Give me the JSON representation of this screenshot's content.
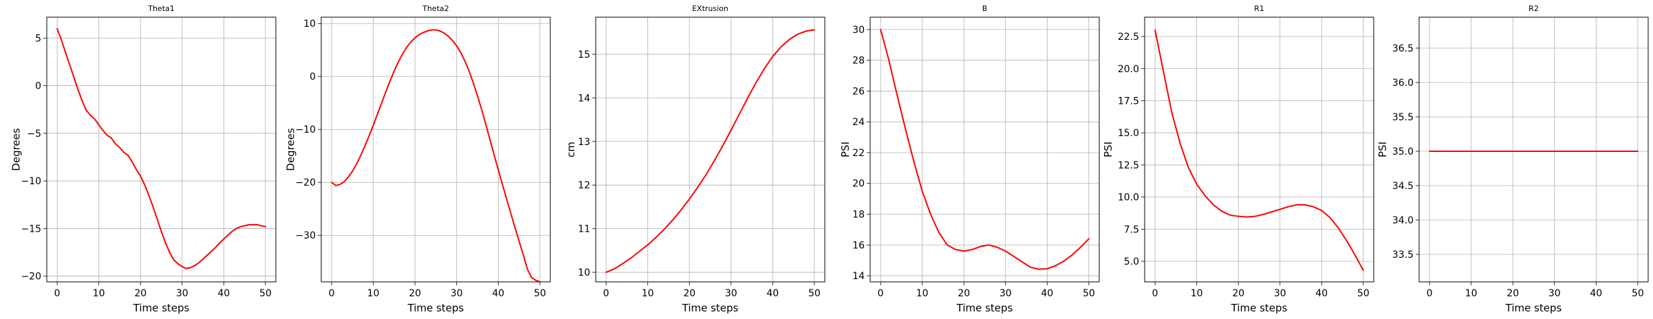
{
  "figure": {
    "accent_color": "#ff0000",
    "grid_color": "#b0b0b0"
  },
  "chart_data": [
    {
      "type": "line",
      "title": "Theta1",
      "xlabel": "Time steps",
      "ylabel": "Degrees",
      "xlim": [
        -2.5,
        52.5
      ],
      "ylim": [
        -20.6,
        7.2
      ],
      "xticks": [
        0,
        10,
        20,
        30,
        40,
        50
      ],
      "yticks": [
        -20,
        -15,
        -10,
        -5,
        0,
        5
      ],
      "grid": true,
      "series": [
        {
          "color": "#ff0000",
          "x": [
            0,
            1,
            2,
            3,
            4,
            5,
            6,
            7,
            8,
            9,
            10,
            11,
            12,
            13,
            14,
            15,
            16,
            17,
            18,
            19,
            20,
            21,
            22,
            23,
            24,
            25,
            26,
            27,
            28,
            29,
            30,
            31,
            32,
            33,
            34,
            35,
            36,
            37,
            38,
            39,
            40,
            41,
            42,
            43,
            44,
            45,
            46,
            47,
            48,
            49,
            50
          ],
          "y": [
            6.0,
            4.8,
            3.5,
            2.2,
            0.9,
            -0.4,
            -1.6,
            -2.6,
            -3.1,
            -3.5,
            -4.1,
            -4.7,
            -5.2,
            -5.5,
            -6.1,
            -6.5,
            -7.0,
            -7.3,
            -8.0,
            -8.8,
            -9.5,
            -10.4,
            -11.5,
            -12.7,
            -14.0,
            -15.3,
            -16.5,
            -17.5,
            -18.3,
            -18.7,
            -19.0,
            -19.2,
            -19.1,
            -18.9,
            -18.6,
            -18.2,
            -17.8,
            -17.4,
            -17.0,
            -16.5,
            -16.1,
            -15.7,
            -15.3,
            -15.0,
            -14.8,
            -14.7,
            -14.6,
            -14.6,
            -14.6,
            -14.7,
            -14.8
          ]
        }
      ]
    },
    {
      "type": "line",
      "title": "Theta2",
      "xlabel": "Time steps",
      "ylabel": "Degrees",
      "xlim": [
        -2.5,
        52.5
      ],
      "ylim": [
        -38.8,
        11.2
      ],
      "xticks": [
        0,
        10,
        20,
        30,
        40,
        50
      ],
      "yticks": [
        -30,
        -20,
        -10,
        0,
        10
      ],
      "grid": true,
      "series": [
        {
          "color": "#ff0000",
          "x": [
            0,
            1,
            2,
            3,
            4,
            5,
            6,
            7,
            8,
            9,
            10,
            11,
            12,
            13,
            14,
            15,
            16,
            17,
            18,
            19,
            20,
            21,
            22,
            23,
            24,
            25,
            26,
            27,
            28,
            29,
            30,
            31,
            32,
            33,
            34,
            35,
            36,
            37,
            38,
            39,
            40,
            41,
            42,
            43,
            44,
            45,
            46,
            47,
            48,
            49,
            50
          ],
          "y": [
            -20.0,
            -20.6,
            -20.4,
            -19.9,
            -19.0,
            -17.9,
            -16.5,
            -14.9,
            -13.1,
            -11.2,
            -9.2,
            -7.1,
            -5.0,
            -2.9,
            -0.9,
            1.0,
            2.7,
            4.2,
            5.5,
            6.5,
            7.3,
            7.9,
            8.3,
            8.6,
            8.8,
            8.8,
            8.6,
            8.2,
            7.6,
            6.8,
            5.8,
            4.5,
            2.9,
            1.0,
            -1.2,
            -3.6,
            -6.2,
            -9.0,
            -11.9,
            -14.8,
            -17.6,
            -20.4,
            -23.1,
            -25.8,
            -28.5,
            -31.1,
            -33.7,
            -36.4,
            -38.0,
            -38.5,
            -38.8
          ]
        }
      ]
    },
    {
      "type": "line",
      "title": "EXtrusion",
      "xlabel": "Time steps",
      "ylabel": "cm",
      "xlim": [
        -2.5,
        52.5
      ],
      "ylim": [
        9.78,
        15.85
      ],
      "xticks": [
        0,
        10,
        20,
        30,
        40,
        50
      ],
      "yticks": [
        10,
        11,
        12,
        13,
        14,
        15
      ],
      "grid": true,
      "series": [
        {
          "color": "#ff0000",
          "x": [
            0,
            2,
            4,
            6,
            8,
            10,
            12,
            14,
            16,
            18,
            20,
            22,
            24,
            26,
            28,
            30,
            32,
            34,
            36,
            38,
            40,
            42,
            44,
            46,
            48,
            50
          ],
          "y": [
            10.0,
            10.08,
            10.2,
            10.33,
            10.48,
            10.63,
            10.8,
            10.99,
            11.2,
            11.43,
            11.68,
            11.95,
            12.24,
            12.56,
            12.9,
            13.26,
            13.63,
            14.0,
            14.35,
            14.67,
            14.95,
            15.17,
            15.34,
            15.46,
            15.53,
            15.56
          ]
        }
      ]
    },
    {
      "type": "line",
      "title": "B",
      "xlabel": "Time steps",
      "ylabel": "PSI",
      "xlim": [
        -2.5,
        52.5
      ],
      "ylim": [
        13.6,
        30.8
      ],
      "xticks": [
        0,
        10,
        20,
        30,
        40,
        50
      ],
      "yticks": [
        14,
        16,
        18,
        20,
        22,
        24,
        26,
        28,
        30
      ],
      "grid": true,
      "series": [
        {
          "color": "#ff0000",
          "x": [
            0,
            2,
            4,
            6,
            8,
            10,
            12,
            14,
            16,
            18,
            20,
            22,
            24,
            26,
            28,
            30,
            32,
            34,
            36,
            38,
            40,
            42,
            44,
            46,
            48,
            50
          ],
          "y": [
            30.0,
            28.0,
            25.7,
            23.5,
            21.4,
            19.5,
            18.0,
            16.8,
            16.0,
            15.7,
            15.6,
            15.7,
            15.9,
            16.0,
            15.85,
            15.6,
            15.25,
            14.9,
            14.55,
            14.42,
            14.45,
            14.65,
            14.95,
            15.35,
            15.85,
            16.4
          ]
        }
      ]
    },
    {
      "type": "line",
      "title": "R1",
      "xlabel": "Time steps",
      "ylabel": "PSI",
      "xlim": [
        -2.5,
        52.5
      ],
      "ylim": [
        3.4,
        24.0
      ],
      "xticks": [
        0,
        10,
        20,
        30,
        40,
        50
      ],
      "yticks": [
        5.0,
        7.5,
        10.0,
        12.5,
        15.0,
        17.5,
        20.0,
        22.5
      ],
      "yticklabels": [
        "5.0",
        "7.5",
        "10.0",
        "12.5",
        "15.0",
        "17.5",
        "20.0",
        "22.5"
      ],
      "grid": true,
      "series": [
        {
          "color": "#ff0000",
          "x": [
            0,
            2,
            4,
            6,
            8,
            10,
            12,
            14,
            16,
            18,
            20,
            22,
            24,
            26,
            28,
            30,
            32,
            34,
            36,
            38,
            40,
            42,
            44,
            46,
            48,
            50
          ],
          "y": [
            23.0,
            19.8,
            16.6,
            14.2,
            12.3,
            11.0,
            10.1,
            9.4,
            8.9,
            8.6,
            8.5,
            8.45,
            8.5,
            8.65,
            8.85,
            9.05,
            9.25,
            9.4,
            9.4,
            9.25,
            8.95,
            8.4,
            7.6,
            6.6,
            5.5,
            4.3
          ]
        }
      ]
    },
    {
      "type": "line",
      "title": "R2",
      "xlabel": "Time steps",
      "ylabel": "PSI",
      "xlim": [
        -2.5,
        52.5
      ],
      "ylim": [
        33.1,
        36.95
      ],
      "xticks": [
        0,
        10,
        20,
        30,
        40,
        50
      ],
      "yticks": [
        33.5,
        34.0,
        34.5,
        35.0,
        35.5,
        36.0,
        36.5
      ],
      "yticklabels": [
        "33.5",
        "34.0",
        "34.5",
        "35.0",
        "35.5",
        "36.0",
        "36.5"
      ],
      "grid": true,
      "series": [
        {
          "color": "#ff0000",
          "x": [
            0,
            50
          ],
          "y": [
            35.0,
            35.0
          ]
        }
      ]
    }
  ]
}
